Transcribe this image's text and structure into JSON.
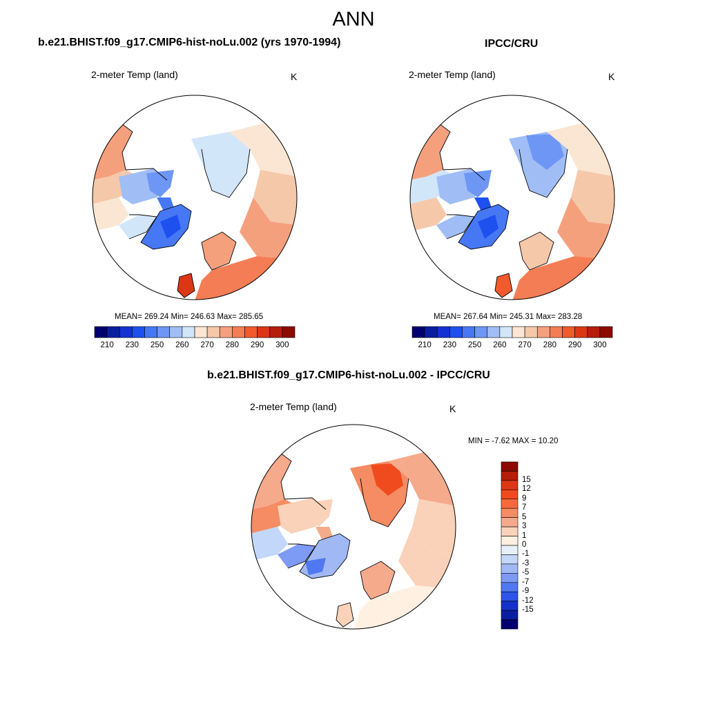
{
  "main_title": "ANN",
  "panels": [
    {
      "title": "b.e21.BHIST.f09_g17.CMIP6-hist-noLu.002 (yrs 1970-1994)",
      "variable": "2-meter Temp (land)",
      "units": "K",
      "stats": "MEAN= 269.24  Min= 246.63  Max= 285.65"
    },
    {
      "title": "IPCC/CRU",
      "variable": "2-meter Temp (land)",
      "units": "K",
      "stats": "MEAN= 267.64  Min= 245.31  Max= 283.28"
    },
    {
      "title": "b.e21.BHIST.f09_g17.CMIP6-hist-noLu.002 - IPCC/CRU",
      "variable": "2-meter Temp (land)",
      "units": "K",
      "stats": "MIN =  -7.62 MAX =  10.20"
    }
  ],
  "abs_colorbar": {
    "tick_labels": [
      "210",
      "230",
      "250",
      "260",
      "270",
      "280",
      "290",
      "300"
    ],
    "colors": [
      "#00006e",
      "#0a1ea0",
      "#1432d2",
      "#1e50f0",
      "#4678f5",
      "#6e96f5",
      "#a0bef5",
      "#d2e6fa",
      "#fae6d2",
      "#f5c8aa",
      "#f5a07d",
      "#f57d55",
      "#f05a2d",
      "#dc3714",
      "#b41e0a",
      "#8c0a00"
    ]
  },
  "diff_colorbar": {
    "tick_labels": [
      "15",
      "12",
      "9",
      "7",
      "5",
      "3",
      "1",
      "0",
      "-1",
      "-3",
      "-5",
      "-7",
      "-9",
      "-12",
      "-15"
    ],
    "colors": [
      "#8c0a00",
      "#b41e0a",
      "#dc3714",
      "#f04b1e",
      "#f5693c",
      "#f58c64",
      "#f5aa8c",
      "#fad2b9",
      "#fff0e1",
      "#e6f0fa",
      "#c3d7fa",
      "#a0b9f5",
      "#7d9bf5",
      "#5078f0",
      "#2d55e6",
      "#1432c8",
      "#0a1ea0",
      "#00006e"
    ]
  }
}
